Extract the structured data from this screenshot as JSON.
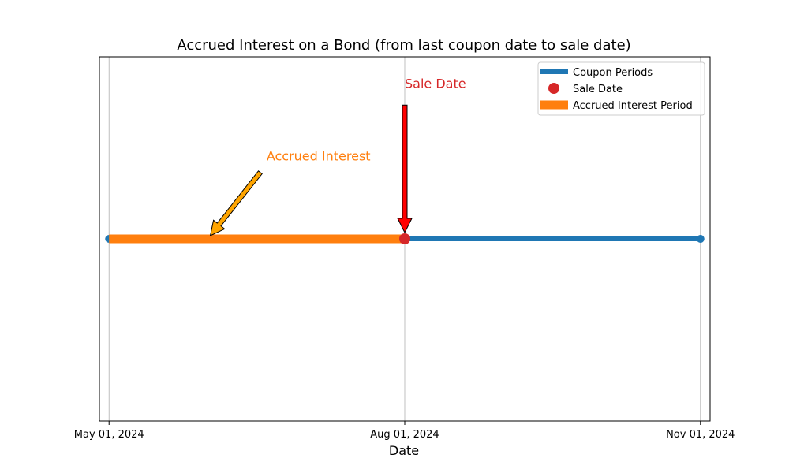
{
  "chart_data": {
    "type": "line",
    "title": "Accrued Interest on a Bond (from last coupon date to sale date)",
    "xlabel": "Date",
    "ylabel": "",
    "x_type": "date",
    "xlim": [
      "2024-04-28",
      "2024-11-04"
    ],
    "xticks": [
      {
        "date": "2024-05-01",
        "label": "May 01, 2024"
      },
      {
        "date": "2024-08-01",
        "label": "Aug 01, 2024"
      },
      {
        "date": "2024-11-01",
        "label": "Nov 01, 2024"
      }
    ],
    "ylim": [
      -1,
      1
    ],
    "y_axis_visible": false,
    "grid": "x",
    "legend_position": "top-right",
    "series": [
      {
        "name": "Coupon Periods",
        "kind": "line",
        "color": "#1f77b4",
        "points": [
          {
            "x": "2024-05-01",
            "y": 0
          },
          {
            "x": "2024-08-01",
            "y": 0
          },
          {
            "x": "2024-11-01",
            "y": 0
          }
        ]
      },
      {
        "name": "Sale Date",
        "kind": "scatter",
        "color": "#d62728",
        "points": [
          {
            "x": "2024-08-01",
            "y": 0
          }
        ]
      },
      {
        "name": "Accrued Interest Period",
        "kind": "band",
        "color": "#ff7f0e",
        "points": [
          {
            "x": "2024-05-01",
            "y": 0
          },
          {
            "x": "2024-08-01",
            "y": 0
          }
        ]
      }
    ],
    "annotations": [
      {
        "text": "Sale Date",
        "color": "#d62728",
        "arrow_color": "#ff0000",
        "text_x": "2024-08-01",
        "text_y": 0.83,
        "point_x": "2024-08-01",
        "point_y": 0
      },
      {
        "text": "Accrued Interest",
        "color": "#ff7f0e",
        "arrow_color": "#ffa500",
        "text_x": "2024-06-19",
        "text_y": 0.43,
        "point_x": "2024-06-01",
        "point_y": 0
      }
    ]
  }
}
